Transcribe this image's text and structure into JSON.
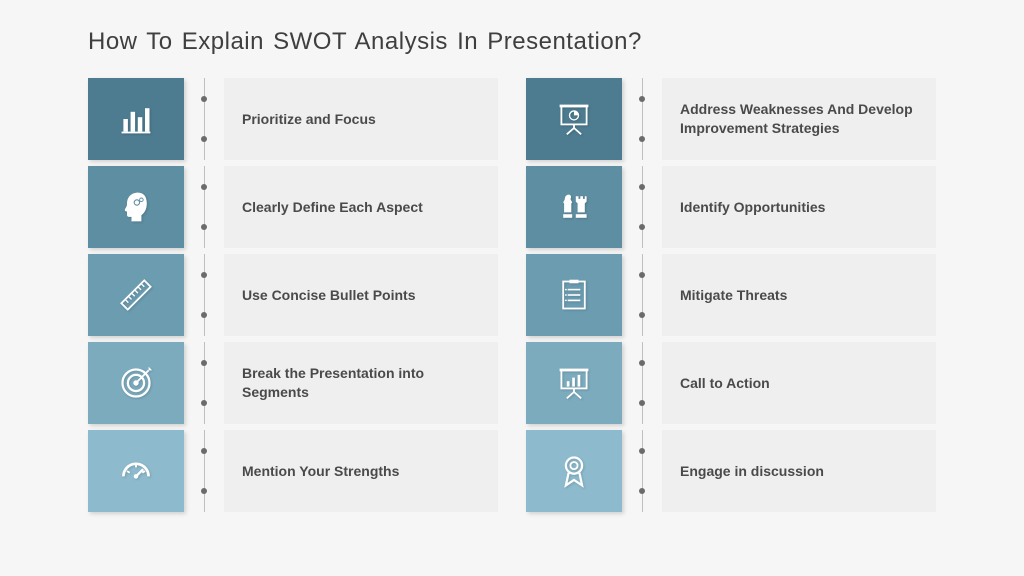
{
  "title": "How To Explain SWOT Analysis In Presentation?",
  "colors": {
    "tile1": "#4d7b90",
    "tile2": "#5e8ea1",
    "tile3": "#6b9cb0",
    "tile4": "#7cabbe",
    "tile5": "#8dbacd",
    "text_bg": "#efefef",
    "page_bg": "#f6f6f6",
    "icon_stroke": "#ffffff"
  },
  "left": [
    {
      "label": "Prioritize and Focus",
      "icon": "bar-chart-icon"
    },
    {
      "label": "Clearly Define Each Aspect",
      "icon": "head-gear-icon"
    },
    {
      "label": "Use Concise Bullet Points",
      "icon": "ruler-icon"
    },
    {
      "label": "Break the Presentation into Segments",
      "icon": "target-icon"
    },
    {
      "label": "Mention Your Strengths",
      "icon": "gauge-icon"
    }
  ],
  "right": [
    {
      "label": "Address Weaknesses And Develop Improvement Strategies",
      "icon": "presentation-pie-icon"
    },
    {
      "label": "Identify Opportunities",
      "icon": "chess-icon"
    },
    {
      "label": "Mitigate Threats",
      "icon": "checklist-icon"
    },
    {
      "label": "Call to Action",
      "icon": "presentation-chart-icon"
    },
    {
      "label": "Engage in discussion",
      "icon": "ribbon-icon"
    }
  ]
}
